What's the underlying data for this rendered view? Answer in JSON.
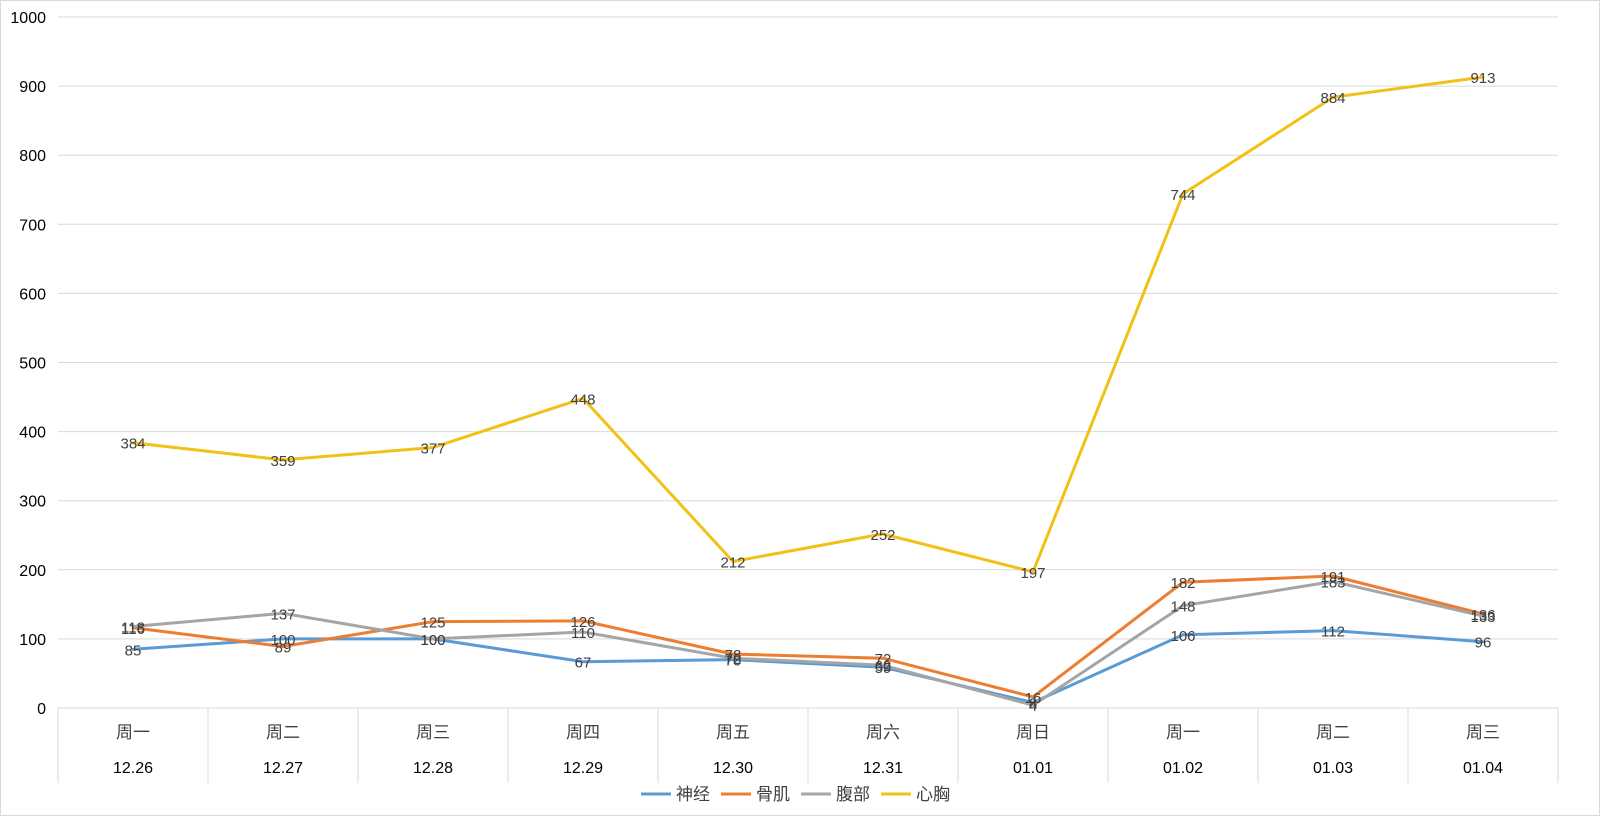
{
  "chart_data": {
    "type": "line",
    "title": "",
    "xlabel": "",
    "ylabel": "",
    "ylim": [
      0,
      1000
    ],
    "yticks": [
      "0",
      "100",
      "200",
      "300",
      "400",
      "500",
      "600",
      "700",
      "800",
      "900",
      "1000"
    ],
    "grid": true,
    "legend_position": "bottom",
    "categories": [
      {
        "weekday": "周一",
        "date": "12.26"
      },
      {
        "weekday": "周二",
        "date": "12.27"
      },
      {
        "weekday": "周三",
        "date": "12.28"
      },
      {
        "weekday": "周四",
        "date": "12.29"
      },
      {
        "weekday": "周五",
        "date": "12.30"
      },
      {
        "weekday": "周六",
        "date": "12.31"
      },
      {
        "weekday": "周日",
        "date": "01.01"
      },
      {
        "weekday": "周一",
        "date": "01.02"
      },
      {
        "weekday": "周二",
        "date": "01.03"
      },
      {
        "weekday": "周三",
        "date": "01.04"
      }
    ],
    "series": [
      {
        "name": "神经",
        "color": "#5b9bd5",
        "values": [
          85,
          100,
          100,
          67,
          70,
          59,
          8,
          106,
          112,
          96
        ]
      },
      {
        "name": "骨肌",
        "color": "#ed7d31",
        "values": [
          116,
          89,
          125,
          126,
          78,
          72,
          16,
          182,
          191,
          136
        ]
      },
      {
        "name": "腹部",
        "color": "#a5a5a5",
        "values": [
          118,
          137,
          100,
          110,
          72,
          62,
          4,
          148,
          183,
          133
        ]
      },
      {
        "name": "心胸",
        "color": "#f2c118",
        "values": [
          384,
          359,
          377,
          448,
          212,
          252,
          197,
          744,
          884,
          913
        ]
      }
    ]
  }
}
